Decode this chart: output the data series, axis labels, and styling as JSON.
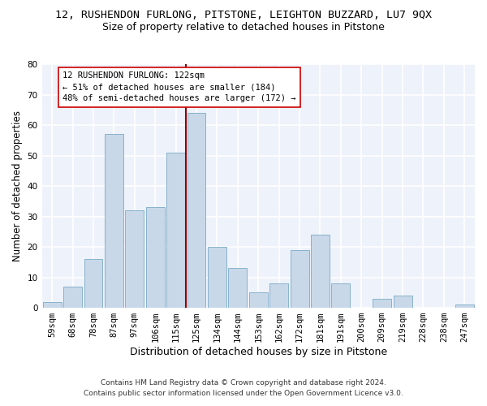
{
  "title": "12, RUSHENDON FURLONG, PITSTONE, LEIGHTON BUZZARD, LU7 9QX",
  "subtitle": "Size of property relative to detached houses in Pitstone",
  "xlabel": "Distribution of detached houses by size in Pitstone",
  "ylabel": "Number of detached properties",
  "bar_labels": [
    "59sqm",
    "68sqm",
    "78sqm",
    "87sqm",
    "97sqm",
    "106sqm",
    "115sqm",
    "125sqm",
    "134sqm",
    "144sqm",
    "153sqm",
    "162sqm",
    "172sqm",
    "181sqm",
    "191sqm",
    "200sqm",
    "209sqm",
    "219sqm",
    "228sqm",
    "238sqm",
    "247sqm"
  ],
  "bar_values": [
    2,
    7,
    16,
    57,
    32,
    33,
    51,
    64,
    20,
    13,
    5,
    8,
    19,
    24,
    8,
    0,
    3,
    4,
    0,
    0,
    1
  ],
  "bar_color": "#c8d8e8",
  "bar_edge_color": "#7aaac8",
  "vline_color": "#8b0000",
  "annotation_text": "12 RUSHENDON FURLONG: 122sqm\n← 51% of detached houses are smaller (184)\n48% of semi-detached houses are larger (172) →",
  "annotation_box_color": "#ffffff",
  "annotation_box_edge": "#cc0000",
  "ylim": [
    0,
    80
  ],
  "yticks": [
    0,
    10,
    20,
    30,
    40,
    50,
    60,
    70,
    80
  ],
  "footer_line1": "Contains HM Land Registry data © Crown copyright and database right 2024.",
  "footer_line2": "Contains public sector information licensed under the Open Government Licence v3.0.",
  "bg_color": "#eef2fa",
  "grid_color": "#ffffff",
  "title_fontsize": 9.5,
  "subtitle_fontsize": 9,
  "axis_label_fontsize": 8.5,
  "tick_fontsize": 7.5,
  "annotation_fontsize": 7.5,
  "footer_fontsize": 6.5
}
